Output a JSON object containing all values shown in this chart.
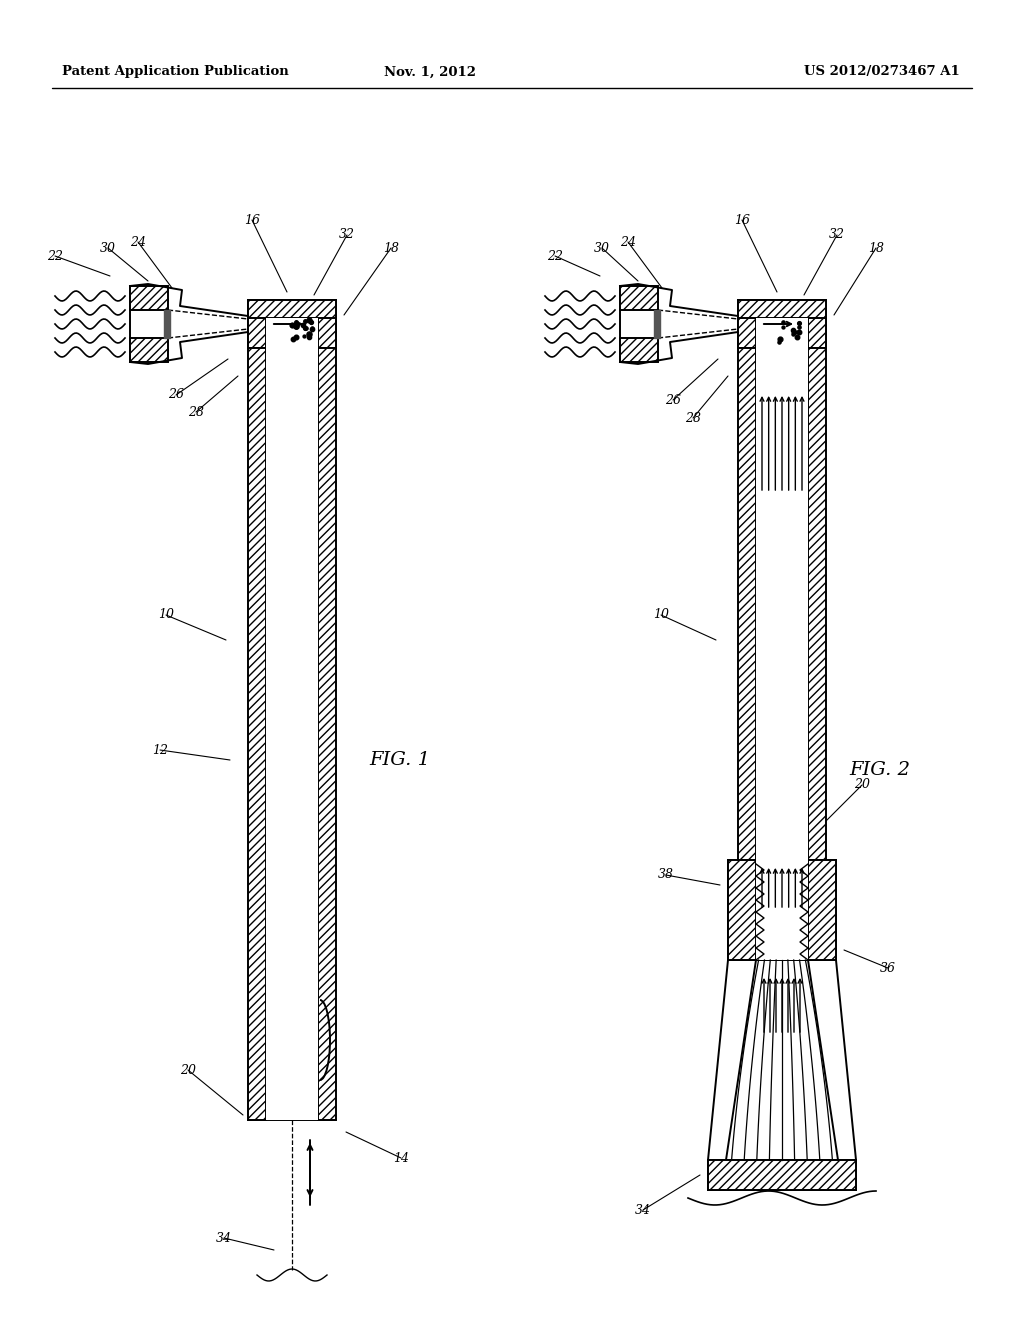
{
  "header_left": "Patent Application Publication",
  "header_center": "Nov. 1, 2012",
  "header_right": "US 2012/0273467 A1",
  "fig1_label": "FIG. 1",
  "fig2_label": "FIG. 2",
  "bg": "#ffffff",
  "black": "#000000"
}
